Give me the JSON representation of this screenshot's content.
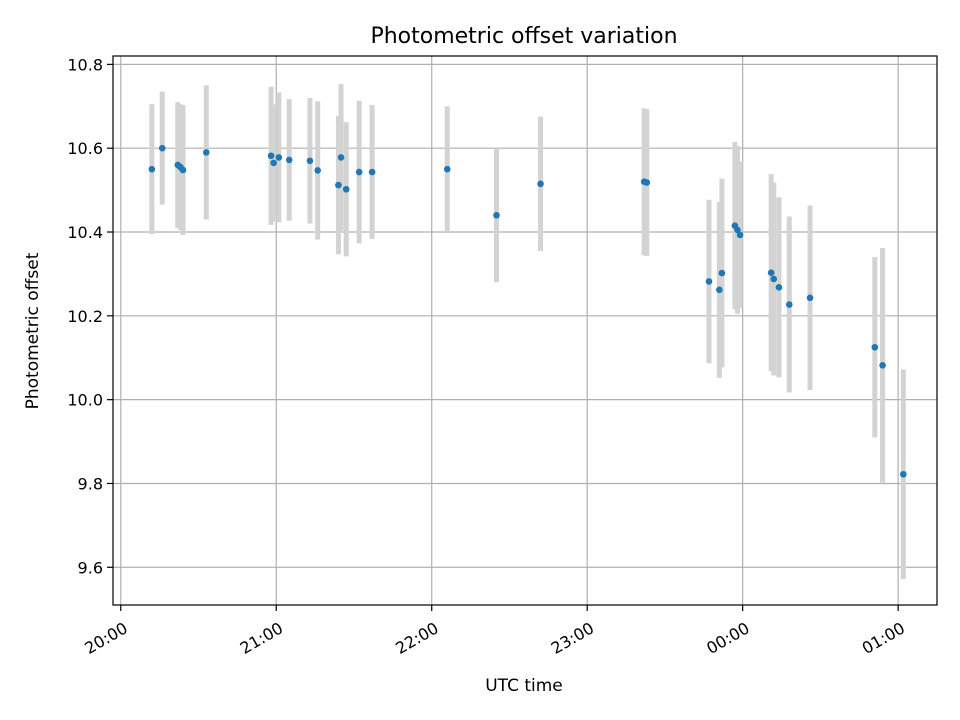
{
  "chart_data": {
    "type": "scatter",
    "title": "Photometric offset variation",
    "xlabel": "UTC time",
    "ylabel": "Photometric offset",
    "x_tick_labels": [
      "20:00",
      "21:00",
      "22:00",
      "23:00",
      "00:00",
      "01:00"
    ],
    "x_tick_hours": [
      20,
      21,
      22,
      23,
      24,
      25
    ],
    "xlim": [
      "19:57",
      "01:15"
    ],
    "y_ticks": [
      "9.6",
      "9.8",
      "10.0",
      "10.2",
      "10.4",
      "10.6",
      "10.8"
    ],
    "ylim": [
      9.51,
      10.82
    ],
    "grid": true,
    "colors": {
      "marker": "#1f77b4",
      "errorbar": "#d3d3d3",
      "grid": "#b0b0b0"
    },
    "points": [
      {
        "time": "20:12",
        "y": 10.55,
        "err": 0.155
      },
      {
        "time": "20:16",
        "y": 10.6,
        "err": 0.135
      },
      {
        "time": "20:22",
        "y": 10.56,
        "err": 0.15
      },
      {
        "time": "20:23",
        "y": 10.555,
        "err": 0.15
      },
      {
        "time": "20:24",
        "y": 10.548,
        "err": 0.155
      },
      {
        "time": "20:33",
        "y": 10.59,
        "err": 0.16
      },
      {
        "time": "20:58",
        "y": 10.582,
        "err": 0.165
      },
      {
        "time": "20:59",
        "y": 10.565,
        "err": 0.14
      },
      {
        "time": "21:01",
        "y": 10.578,
        "err": 0.155
      },
      {
        "time": "21:05",
        "y": 10.572,
        "err": 0.145
      },
      {
        "time": "21:13",
        "y": 10.57,
        "err": 0.15
      },
      {
        "time": "21:16",
        "y": 10.547,
        "err": 0.165
      },
      {
        "time": "21:24",
        "y": 10.512,
        "err": 0.165
      },
      {
        "time": "21:25",
        "y": 10.578,
        "err": 0.175
      },
      {
        "time": "21:27",
        "y": 10.502,
        "err": 0.16
      },
      {
        "time": "21:32",
        "y": 10.543,
        "err": 0.17
      },
      {
        "time": "21:37",
        "y": 10.543,
        "err": 0.16
      },
      {
        "time": "22:06",
        "y": 10.55,
        "err": 0.15
      },
      {
        "time": "22:25",
        "y": 10.44,
        "err": 0.16
      },
      {
        "time": "22:42",
        "y": 10.515,
        "err": 0.16
      },
      {
        "time": "23:22",
        "y": 10.52,
        "err": 0.175
      },
      {
        "time": "23:23",
        "y": 10.518,
        "err": 0.175
      },
      {
        "time": "23:47",
        "y": 10.282,
        "err": 0.195
      },
      {
        "time": "23:51",
        "y": 10.262,
        "err": 0.21
      },
      {
        "time": "23:52",
        "y": 10.302,
        "err": 0.225
      },
      {
        "time": "23:57",
        "y": 10.415,
        "err": 0.2
      },
      {
        "time": "23:58",
        "y": 10.405,
        "err": 0.2
      },
      {
        "time": "23:59",
        "y": 10.393,
        "err": 0.175
      },
      {
        "time": "00:11",
        "y": 10.303,
        "err": 0.235
      },
      {
        "time": "00:12",
        "y": 10.288,
        "err": 0.23
      },
      {
        "time": "00:14",
        "y": 10.268,
        "err": 0.215
      },
      {
        "time": "00:18",
        "y": 10.227,
        "err": 0.21
      },
      {
        "time": "00:26",
        "y": 10.243,
        "err": 0.22
      },
      {
        "time": "00:51",
        "y": 10.125,
        "err": 0.215
      },
      {
        "time": "00:54",
        "y": 10.082,
        "err": 0.28
      },
      {
        "time": "01:02",
        "y": 9.822,
        "err": 0.25
      }
    ]
  }
}
